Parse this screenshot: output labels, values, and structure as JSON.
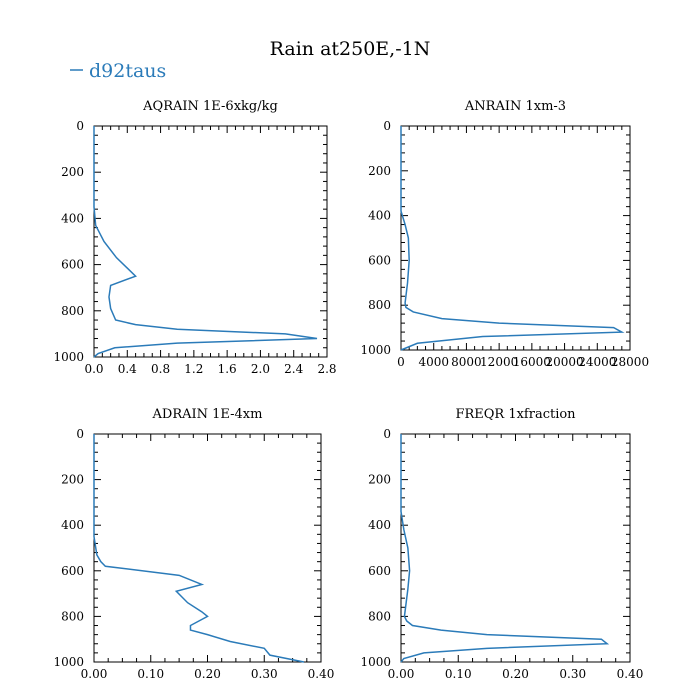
{
  "figure": {
    "title": "Rain at250E,-1N",
    "legend": {
      "label": "d92taus",
      "color": "#2b7bb9"
    }
  },
  "chart_data": [
    {
      "type": "line",
      "title": "AQRAIN  1E-6xkg/kg",
      "xlim": [
        0,
        2.8
      ],
      "ylim": [
        1000,
        0
      ],
      "xticks": [
        "0.0",
        "0.4",
        "0.8",
        "1.2",
        "1.6",
        "2.0",
        "2.4",
        "2.8"
      ],
      "xtick_values": [
        0,
        0.4,
        0.8,
        1.2,
        1.6,
        2.0,
        2.4,
        2.8
      ],
      "yticks": [
        "0",
        "200",
        "400",
        "600",
        "800",
        "1000"
      ],
      "ytick_values": [
        0,
        200,
        400,
        600,
        800,
        1000
      ],
      "series": [
        {
          "name": "d92taus",
          "x": [
            0,
            0,
            0.02,
            0.12,
            0.27,
            0.5,
            0.2,
            0.18,
            0.2,
            0.26,
            0.5,
            1.0,
            2.3,
            2.68,
            1.0,
            0.25,
            0.05,
            0
          ],
          "y": [
            0,
            350,
            430,
            500,
            570,
            650,
            690,
            740,
            790,
            840,
            860,
            880,
            900,
            920,
            940,
            960,
            985,
            1000
          ]
        }
      ]
    },
    {
      "type": "line",
      "title": "ANRAIN  1xm-3",
      "xlim": [
        0,
        28000
      ],
      "ylim": [
        1000,
        0
      ],
      "xticks": [
        "0",
        "4000",
        "8000",
        "12000",
        "16000",
        "20000",
        "24000",
        "28000"
      ],
      "xtick_values": [
        0,
        4000,
        8000,
        12000,
        16000,
        20000,
        24000,
        28000
      ],
      "yticks": [
        "0",
        "200",
        "400",
        "600",
        "800",
        "1000"
      ],
      "ytick_values": [
        0,
        200,
        400,
        600,
        800,
        1000
      ],
      "series": [
        {
          "name": "d92taus",
          "x": [
            0,
            0,
            500,
            900,
            1000,
            800,
            500,
            600,
            1500,
            5000,
            12000,
            26000,
            27000,
            10000,
            2000,
            0
          ],
          "y": [
            0,
            380,
            440,
            500,
            600,
            700,
            790,
            810,
            830,
            860,
            880,
            900,
            920,
            940,
            970,
            1000
          ]
        }
      ]
    },
    {
      "type": "line",
      "title": "ADRAIN  1E-4xm",
      "xlim": [
        0,
        0.4
      ],
      "ylim": [
        1000,
        0
      ],
      "xticks": [
        "0.00",
        "0.10",
        "0.20",
        "0.30",
        "0.40"
      ],
      "xtick_values": [
        0,
        0.1,
        0.2,
        0.3,
        0.4
      ],
      "yticks": [
        "0",
        "200",
        "400",
        "600",
        "800",
        "1000"
      ],
      "ytick_values": [
        0,
        200,
        400,
        600,
        800,
        1000
      ],
      "series": [
        {
          "name": "d92taus",
          "x": [
            0,
            0,
            0.005,
            0.012,
            0.02,
            0.15,
            0.19,
            0.145,
            0.165,
            0.19,
            0.2,
            0.17,
            0.17,
            0.2,
            0.24,
            0.3,
            0.31,
            0.37
          ],
          "y": [
            0,
            450,
            530,
            560,
            580,
            620,
            660,
            690,
            740,
            780,
            800,
            840,
            860,
            880,
            910,
            940,
            970,
            1000
          ]
        }
      ]
    },
    {
      "type": "line",
      "title": "FREQR  1xfraction",
      "xlim": [
        0,
        0.4
      ],
      "ylim": [
        1000,
        0
      ],
      "xticks": [
        "0.00",
        "0.10",
        "0.20",
        "0.30",
        "0.40"
      ],
      "xtick_values": [
        0,
        0.1,
        0.2,
        0.3,
        0.4
      ],
      "yticks": [
        "0",
        "200",
        "400",
        "600",
        "800",
        "1000"
      ],
      "ytick_values": [
        0,
        200,
        400,
        600,
        800,
        1000
      ],
      "series": [
        {
          "name": "d92taus",
          "x": [
            0,
            0,
            0.005,
            0.012,
            0.015,
            0.012,
            0.008,
            0.006,
            0.01,
            0.02,
            0.07,
            0.15,
            0.35,
            0.36,
            0.15,
            0.04,
            0.005,
            0
          ],
          "y": [
            0,
            340,
            420,
            500,
            600,
            680,
            760,
            800,
            820,
            840,
            860,
            880,
            900,
            920,
            940,
            960,
            985,
            1000
          ]
        }
      ]
    }
  ]
}
